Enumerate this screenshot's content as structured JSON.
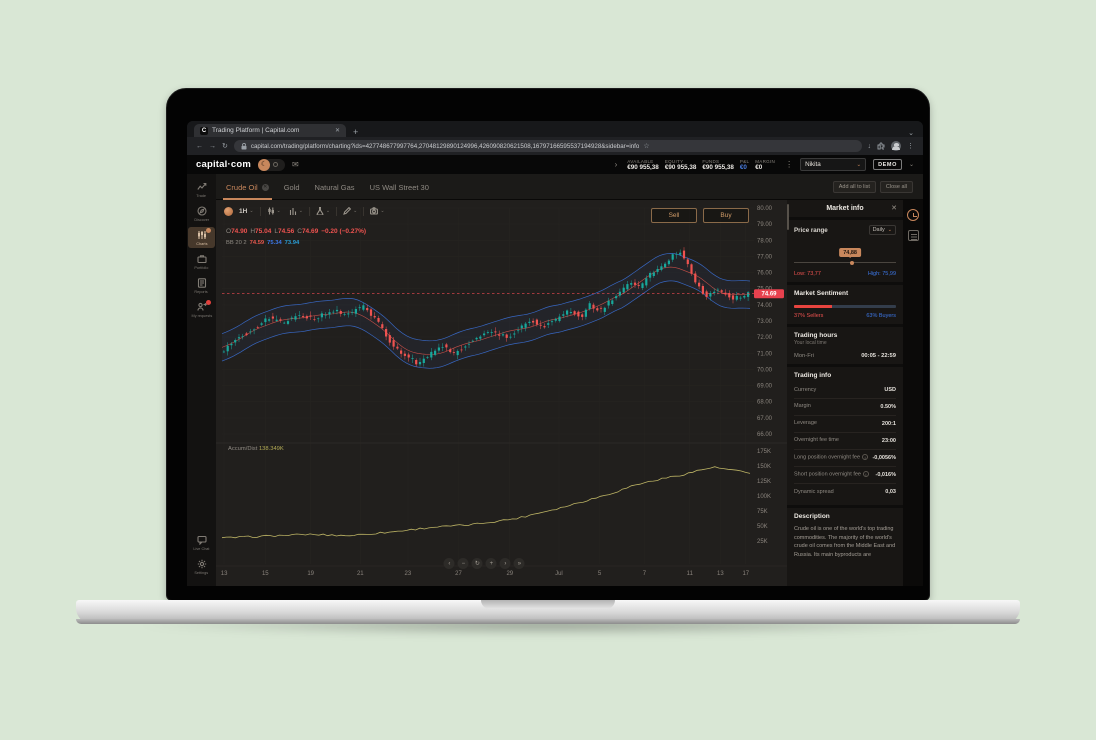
{
  "icons": {
    "close": "✕",
    "plus": "+",
    "chevron_down": "⌄",
    "chevron_right": "›",
    "back": "←",
    "forward": "→",
    "reload": "↻",
    "star": "☆",
    "download": "↓",
    "kebab": "⋮",
    "mail": "✉",
    "gear": "⚙",
    "moon": "☾",
    "info": "i",
    "favicon_letter": "C"
  },
  "browser": {
    "tab_title": "Trading Platform | Capital.com",
    "url": "capital.com/trading/platform/charting?ids=427748677997764,27048129890124996,426090820621508,16797166595537194928&sidebar=info"
  },
  "header": {
    "logo": "capital·com",
    "stats": [
      {
        "label": "AVAILABLE",
        "value": "€90 955,38"
      },
      {
        "label": "EQUITY",
        "value": "€90 955,38"
      },
      {
        "label": "FUNDS",
        "value": "€90 955,38"
      },
      {
        "label": "P&L",
        "value": "€0",
        "accent": true
      },
      {
        "label": "MARGIN",
        "value": "€0"
      }
    ],
    "user_name": "Nikita",
    "account_mode": "DEMO"
  },
  "sidebar": {
    "items": [
      {
        "label": "Trade",
        "icon": "trade-icon"
      },
      {
        "label": "Discover",
        "icon": "discover-icon"
      },
      {
        "label": "Charts",
        "icon": "charts-icon",
        "active": true,
        "badge": "dot"
      },
      {
        "label": "Portfolio",
        "icon": "portfolio-icon"
      },
      {
        "label": "Reports",
        "icon": "reports-icon"
      },
      {
        "label": "My requests",
        "icon": "requests-icon",
        "badge": "alert"
      }
    ],
    "bottom": [
      {
        "label": "Live Chat",
        "icon": "chat-icon"
      },
      {
        "label": "Settings",
        "icon": "settings-icon"
      }
    ]
  },
  "instruments": {
    "tabs": [
      {
        "label": "Crude Oil",
        "active": true,
        "closable": true
      },
      {
        "label": "Gold"
      },
      {
        "label": "Natural Gas"
      },
      {
        "label": "US Wall Street 30"
      }
    ],
    "add_all_label": "Add all to list",
    "close_all_label": "Close all"
  },
  "chart": {
    "timeframe": "1H",
    "toolbar_icons": [
      "instrument-logo-icon",
      "candles-icon",
      "compare-icon",
      "indicators-icon",
      "draw-icon",
      "snapshot-icon"
    ],
    "legend": {
      "o_label": "O",
      "o": "74.90",
      "h_label": "H",
      "h": "75.04",
      "l_label": "L",
      "l": "74.56",
      "c_label": "C",
      "c": "74.69",
      "change": "−0.20 (−0.27%)"
    },
    "indicator": {
      "label": "BB 20 2",
      "values": [
        {
          "v": "74.59",
          "color": "#e8584e"
        },
        {
          "v": "75.34",
          "color": "#3d78e8"
        },
        {
          "v": "73.94",
          "color": "#2a9fd8"
        }
      ]
    },
    "sell_label": "Sell",
    "buy_label": "Buy",
    "current_price": "74.69",
    "accum_label": "Accum/Dist",
    "accum_value": "138.349K",
    "nav_controls": [
      {
        "name": "scroll-left-button",
        "glyph": "‹"
      },
      {
        "name": "zoom-out-button",
        "glyph": "−"
      },
      {
        "name": "reset-view-button",
        "glyph": "↻"
      },
      {
        "name": "zoom-in-button",
        "glyph": "+"
      },
      {
        "name": "scroll-right-button",
        "glyph": "›"
      },
      {
        "name": "go-to-latest-button",
        "glyph": "»"
      }
    ]
  },
  "chart_data": {
    "type": "candlestick",
    "title": "Crude Oil 1H",
    "panels": [
      {
        "name": "price",
        "ylim": [
          66,
          80
        ],
        "yticks": [
          80,
          79,
          78,
          77,
          76,
          75,
          74,
          73,
          72,
          71,
          70,
          69,
          68,
          67,
          66
        ],
        "current_price": 74.69,
        "series": [
          {
            "name": "Crude Oil H1 close path",
            "anchor_f": [
              0,
              0.03,
              0.06,
              0.09,
              0.12,
              0.15,
              0.18,
              0.21,
              0.24,
              0.27,
              0.295,
              0.315,
              0.33,
              0.355,
              0.375,
              0.4,
              0.42,
              0.44,
              0.46,
              0.49,
              0.52,
              0.545,
              0.57,
              0.59,
              0.615,
              0.64,
              0.66,
              0.685,
              0.7,
              0.72,
              0.74,
              0.76,
              0.78,
              0.795,
              0.815,
              0.835,
              0.855,
              0.87,
              0.885,
              0.9,
              0.92,
              0.945,
              0.97,
              1.0
            ],
            "anchor_price": [
              71.0,
              71.9,
              72.4,
              73.2,
              72.9,
              73.4,
              73.1,
              73.7,
              73.4,
              73.9,
              73.1,
              72.1,
              71.3,
              70.8,
              70.35,
              71.0,
              71.5,
              70.9,
              71.4,
              72.1,
              72.3,
              72.0,
              72.6,
              73.0,
              72.7,
              73.2,
              73.6,
              73.3,
              74.0,
              73.6,
              74.3,
              74.9,
              75.4,
              75.1,
              75.9,
              76.3,
              77.0,
              77.35,
              76.6,
              75.4,
              74.5,
              74.95,
              74.35,
              74.69
            ]
          },
          {
            "name": "Bollinger Bands (20, 2)",
            "band_halfwidth": 0.85
          }
        ]
      },
      {
        "name": "accum-dist",
        "yticks_k": [
          175,
          150,
          125,
          100,
          75,
          50,
          25
        ],
        "last_value": "138.349K",
        "anchor_f": [
          0,
          0.08,
          0.16,
          0.24,
          0.32,
          0.4,
          0.47,
          0.52,
          0.56,
          0.6,
          0.64,
          0.68,
          0.72,
          0.75,
          0.78,
          0.81,
          0.84,
          0.87,
          0.9,
          0.93,
          0.96,
          1.0
        ],
        "anchor_value_k": [
          30,
          33,
          36,
          34,
          40,
          48,
          52,
          58,
          63,
          72,
          80,
          90,
          100,
          108,
          118,
          124,
          130,
          135,
          142,
          148,
          144,
          138
        ]
      }
    ],
    "x_axis": [
      {
        "label": "13",
        "f": 0.004
      },
      {
        "label": "15",
        "f": 0.082
      },
      {
        "label": "19",
        "f": 0.168
      },
      {
        "label": "21",
        "f": 0.262
      },
      {
        "label": "23",
        "f": 0.352
      },
      {
        "label": "27",
        "f": 0.448
      },
      {
        "label": "29",
        "f": 0.545
      },
      {
        "label": "Jul",
        "f": 0.638
      },
      {
        "label": "5",
        "f": 0.715
      },
      {
        "label": "7",
        "f": 0.8
      },
      {
        "label": "11",
        "f": 0.886
      },
      {
        "label": "13",
        "f": 0.944
      },
      {
        "label": "17",
        "f": 0.992
      }
    ]
  },
  "market_info": {
    "title": "Market info",
    "price_range": {
      "label": "Price range",
      "period": "Daily",
      "tooltip": "74,88",
      "marker_pos_pct": 55,
      "low_label": "Low:",
      "low": "73,77",
      "high_label": "High:",
      "high": "75,99"
    },
    "sentiment": {
      "title": "Market Sentiment",
      "sellers_pct": 37,
      "sellers_label": "37% Sellers",
      "buyers_label": "63% Buyers"
    },
    "hours": {
      "title": "Trading hours",
      "subtitle": "Your local time",
      "rows": [
        {
          "label": "Mon-Fri",
          "value": "00:05 - 22:59"
        }
      ]
    },
    "trading_info": {
      "title": "Trading info",
      "rows": [
        {
          "label": "Currency",
          "value": "USD"
        },
        {
          "label": "Margin",
          "value": "0.50%"
        },
        {
          "label": "Leverage",
          "value": "200:1"
        },
        {
          "label": "Overnight fee time",
          "value": "23:00"
        },
        {
          "label": "Long position overnight fee",
          "value": "-0,0056%",
          "info": true
        },
        {
          "label": "Short position overnight fee",
          "value": "-0,016%",
          "info": true
        },
        {
          "label": "Dynamic spread",
          "value": "0,03"
        }
      ]
    },
    "description": {
      "title": "Description",
      "text": "Crude oil is one of the world's top trading commodities. The majority of the world's crude oil comes from the Middle East and Russia. Its main byproducts are"
    }
  }
}
